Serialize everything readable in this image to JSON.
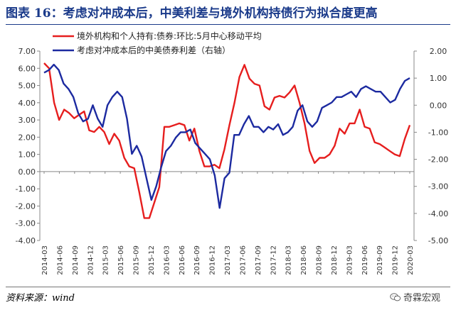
{
  "title": "图表 16：考虑对冲成本后，中美利差与境外机构持债行为拟合度更高",
  "source": "资料来源：wind",
  "watermark": "奇霖宏观",
  "watermark_icon": "wechat-icon",
  "colors": {
    "series1": "#e61e1e",
    "series2": "#1c2aa0",
    "title": "#1a3a8a",
    "axis": "#888888"
  },
  "chart_data": {
    "type": "line",
    "xlabels": [
      "2014-03",
      "2014-06",
      "2014-09",
      "2014-12",
      "2015-03",
      "2015-06",
      "2015-09",
      "2015-12",
      "2016-03",
      "2016-06",
      "2016-09",
      "2016-12",
      "2017-03",
      "2017-06",
      "2017-09",
      "2017-12",
      "2018-03",
      "2018-06",
      "2018-09",
      "2018-12",
      "2019-03",
      "2019-06",
      "2019-09",
      "2019-12",
      "2020-03"
    ],
    "left_axis": {
      "min": -4,
      "max": 7,
      "step": 1,
      "ticks": [
        "-4.00",
        "-3.00",
        "-2.00",
        "-1.00",
        "0.00",
        "1.00",
        "2.00",
        "3.00",
        "4.00",
        "5.00",
        "6.00",
        "7.00"
      ]
    },
    "right_axis": {
      "min": -5,
      "max": 2,
      "step": 1,
      "ticks": [
        "-5.00",
        "-4.00",
        "-3.00",
        "-2.00",
        "-1.00",
        "0.00",
        "1.00",
        "2.00"
      ]
    },
    "legend_position": "top-left",
    "grid": false,
    "series": [
      {
        "name": "境外机构和个人持有:债券:环比:5月中心移动平均",
        "axis": "left",
        "color": "#e61e1e",
        "values": [
          6.3,
          6.0,
          4.0,
          3.0,
          3.6,
          3.4,
          3.1,
          3.3,
          3.5,
          2.4,
          2.3,
          2.6,
          2.3,
          1.6,
          2.2,
          1.8,
          0.8,
          0.3,
          0.2,
          -1.2,
          -2.7,
          -2.7,
          -1.8,
          -0.9,
          2.6,
          2.6,
          2.7,
          2.8,
          2.7,
          1.8,
          2.5,
          1.2,
          0.3,
          0.3,
          0.4,
          0.2,
          1.3,
          2.7,
          4.0,
          5.5,
          6.2,
          5.4,
          5.1,
          5.0,
          3.8,
          3.6,
          4.3,
          4.4,
          4.3,
          4.6,
          5.0,
          4.0,
          2.8,
          1.2,
          0.5,
          0.8,
          0.8,
          1.0,
          1.5,
          2.5,
          2.2,
          2.8,
          2.8,
          3.6,
          2.6,
          2.5,
          1.7,
          1.6,
          1.4,
          1.2,
          1.0,
          0.9,
          1.9,
          2.7
        ]
      },
      {
        "name": "考虑对冲成本后的中美债券利差（右轴）",
        "axis": "right",
        "color": "#1c2aa0",
        "values": [
          1.2,
          1.3,
          1.5,
          1.3,
          0.8,
          0.6,
          0.3,
          -0.3,
          -0.6,
          -0.5,
          0.0,
          -0.5,
          -0.8,
          0.0,
          0.3,
          0.5,
          0.3,
          -0.5,
          -1.8,
          -1.5,
          -1.9,
          -2.7,
          -3.5,
          -3.0,
          -2.3,
          -1.7,
          -1.5,
          -1.2,
          -1.0,
          -1.0,
          -0.9,
          -1.4,
          -1.6,
          -1.8,
          -2.0,
          -2.6,
          -3.8,
          -2.7,
          -2.5,
          -1.1,
          -1.1,
          -0.7,
          -0.4,
          -0.8,
          -0.8,
          -1.0,
          -0.8,
          -0.9,
          -0.7,
          -1.1,
          -1.0,
          -0.8,
          -0.2,
          0.0,
          -0.6,
          -0.8,
          -0.6,
          -0.1,
          0.0,
          0.1,
          0.3,
          0.3,
          0.4,
          0.5,
          0.3,
          0.6,
          0.7,
          0.6,
          0.5,
          0.5,
          0.3,
          0.1,
          0.2,
          0.6,
          0.9,
          1.0
        ]
      }
    ]
  }
}
